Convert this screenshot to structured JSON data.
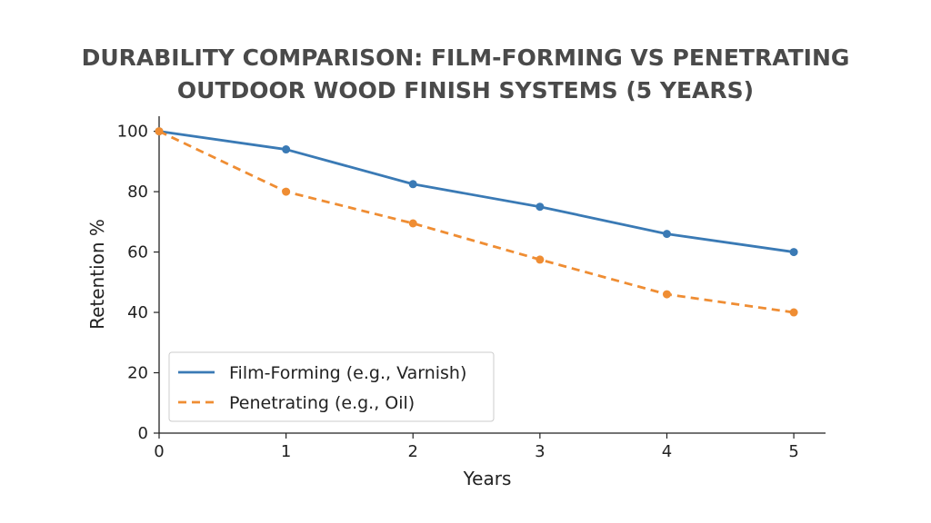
{
  "chart_data": {
    "type": "line",
    "title_lines": [
      "DURABILITY COMPARISON: FILM-FORMING VS PENETRATING",
      "OUTDOOR WOOD FINISH SYSTEMS (5 YEARS)"
    ],
    "xlabel": "Years",
    "ylabel": "Retention %",
    "x": [
      0,
      1,
      2,
      3,
      4,
      5
    ],
    "xticks": [
      "0",
      "1",
      "2",
      "3",
      "4",
      "5"
    ],
    "yticks": [
      "0",
      "20",
      "40",
      "60",
      "80",
      "100"
    ],
    "xlim": [
      0,
      5.25
    ],
    "ylim": [
      0,
      105
    ],
    "grid": false,
    "legend_position": "lower-left",
    "series": [
      {
        "name": "Film-Forming (e.g., Varnish)",
        "values": [
          100,
          94,
          82.5,
          75,
          66,
          60
        ],
        "color": "#3a7ab5",
        "style": "solid"
      },
      {
        "name": "Penetrating (e.g., Oil)",
        "values": [
          100,
          80,
          69.5,
          57.5,
          46,
          40
        ],
        "color": "#ef8d33",
        "style": "dashed"
      }
    ]
  }
}
